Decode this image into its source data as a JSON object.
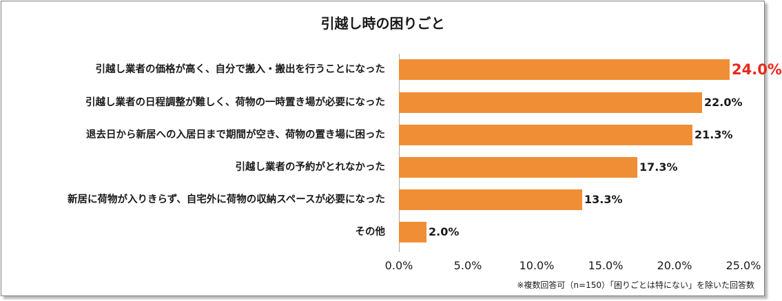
{
  "chart_data": {
    "type": "bar",
    "orientation": "horizontal",
    "title": "引越し時の困りごと",
    "categories": [
      "引越し業者の価格が高く、自分で搬入・搬出を行うことになった",
      "引越し業者の日程調整が難しく、荷物の一時置き場が必要になった",
      "退去日から新居への入居日まで期間が空き、荷物の置き場に困った",
      "引越し業者の予約がとれなかった",
      "新居に荷物が入りきらず、自宅外に荷物の収納スペースが必要になった",
      "その他"
    ],
    "values": [
      24.0,
      22.0,
      21.3,
      17.3,
      13.3,
      2.0
    ],
    "value_labels": [
      "24.0%",
      "22.0%",
      "21.3%",
      "17.3%",
      "13.3%",
      "2.0%"
    ],
    "xlim": [
      0,
      25
    ],
    "x_ticks": [
      "0.0%",
      "5.0%",
      "10.0%",
      "15.0%",
      "20.0%",
      "25.0%"
    ],
    "grid": false,
    "bar_color": "#f08e35",
    "highlight_color": "#e8271b",
    "note": "※複数回答可（n=150）「困りごとは特にない」を除いた回答数"
  }
}
